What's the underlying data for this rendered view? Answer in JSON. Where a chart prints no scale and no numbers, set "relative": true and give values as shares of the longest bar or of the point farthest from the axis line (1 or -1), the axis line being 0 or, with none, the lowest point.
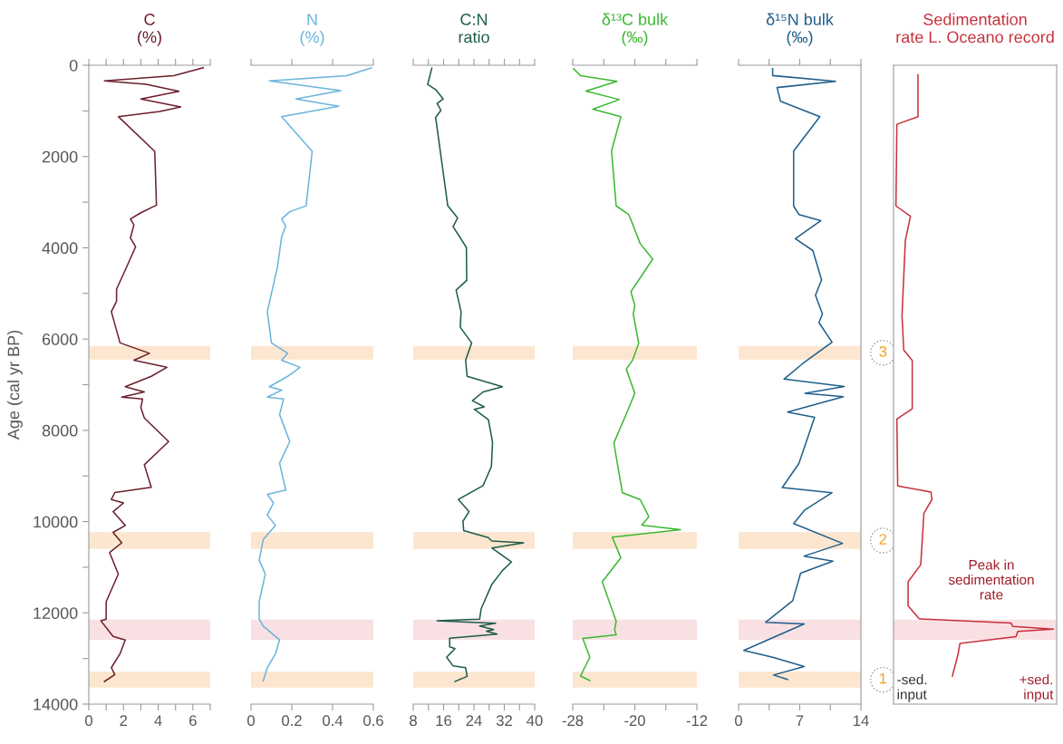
{
  "chart_data": [
    {
      "type": "line",
      "orientation": "horizontal",
      "title": "C\n(%)",
      "ylabel": "Age (cal yr BP)",
      "xlim": [
        0,
        7
      ],
      "xticks": [
        0,
        {
          "value": 1,
          "label": null
        },
        2,
        {
          "value": 3,
          "label": null
        },
        4,
        {
          "value": 5,
          "label": null
        },
        6,
        {
          "value": 7,
          "label": null
        }
      ],
      "ylim": [
        14000,
        0
      ],
      "yticks": [
        0,
        {
          "value": 1000,
          "label": null
        },
        2000,
        {
          "value": 3000,
          "label": null
        },
        4000,
        {
          "value": 5000,
          "label": null
        },
        6000,
        {
          "value": 7000,
          "label": null
        },
        8000,
        {
          "value": 9000,
          "label": null
        },
        10000,
        {
          "value": 11000,
          "label": null
        },
        12000,
        {
          "value": 13000,
          "label": null
        },
        14000
      ],
      "series": [
        {
          "color": "#6b1f2a",
          "x": [
            53,
            228,
            342,
            418,
            570,
            738,
            913,
            1011,
            1125,
            1886,
            3065,
            3232,
            3369,
            3498,
            3787,
            3977,
            4487,
            4905,
            5171,
            5399,
            6084,
            6312,
            6464,
            6620,
            6817,
            7045,
            7159,
            7273,
            7311,
            7501,
            7729,
            8246,
            8755,
            9249,
            9363,
            9515,
            9591,
            9781,
            10085,
            10237,
            10465,
            10678,
            11149,
            11757,
            12137,
            12175,
            12517,
            12593,
            12897,
            13201,
            13353,
            13505
          ],
          "values": [
            6.6,
            4.9,
            0.9,
            3.3,
            5.2,
            3.0,
            5.3,
            4.1,
            1.7,
            3.8,
            3.9,
            3.0,
            2.4,
            2.6,
            2.4,
            2.7,
            2.1,
            1.6,
            1.6,
            1.3,
            1.8,
            3.5,
            2.6,
            4.5,
            3.6,
            2.1,
            3.2,
            1.9,
            3.1,
            3.0,
            3.2,
            4.6,
            3.2,
            3.6,
            1.5,
            1.3,
            2.0,
            1.4,
            2.1,
            1.4,
            1.9,
            1.2,
            1.7,
            1.0,
            1.0,
            0.7,
            1.4,
            2.1,
            1.8,
            1.3,
            1.5,
            0.9
          ]
        }
      ],
      "bands": [
        {
          "axis": "y",
          "from": 6150,
          "to": 6450,
          "label": null,
          "color": "#fde6cf"
        },
        {
          "axis": "y",
          "from": 10230,
          "to": 10600,
          "label": null,
          "color": "#fde6cf"
        },
        {
          "axis": "y",
          "from": 12150,
          "to": 12590,
          "label": null,
          "color": "#f9e0e3"
        },
        {
          "axis": "y",
          "from": 13290,
          "to": 13640,
          "label": null,
          "color": "#fde6cf"
        }
      ]
    },
    {
      "type": "line",
      "orientation": "horizontal",
      "title": "N\n(%)",
      "tick_labels": "x",
      "xlim": [
        0,
        0.6
      ],
      "xticks": [
        0,
        0.2,
        0.4,
        0.6
      ],
      "ylim": [
        14000,
        0
      ],
      "series": [
        {
          "color": "#6ab4dc",
          "x": [
            61,
            228,
            342,
            555,
            738,
            897,
            1125,
            1886,
            3080,
            3209,
            3369,
            3521,
            3764,
            4410,
            5399,
            6084,
            6312,
            6464,
            6620,
            6817,
            7045,
            7121,
            7273,
            7311,
            7653,
            8246,
            8717,
            9310,
            9401,
            9591,
            9857,
            10085,
            10389,
            10845,
            11149,
            11757,
            12137,
            12289,
            12593,
            12897,
            13201,
            13490
          ],
          "values": [
            0.59,
            0.47,
            0.09,
            0.44,
            0.22,
            0.43,
            0.15,
            0.3,
            0.27,
            0.19,
            0.15,
            0.17,
            0.15,
            0.13,
            0.08,
            0.1,
            0.18,
            0.15,
            0.24,
            0.18,
            0.09,
            0.15,
            0.08,
            0.16,
            0.14,
            0.19,
            0.14,
            0.17,
            0.08,
            0.11,
            0.08,
            0.12,
            0.06,
            0.04,
            0.07,
            0.04,
            0.04,
            0.06,
            0.14,
            0.12,
            0.08,
            0.06
          ]
        }
      ],
      "bands": [
        {
          "axis": "y",
          "from": 6150,
          "to": 6450,
          "label": null,
          "color": "#fde6cf"
        },
        {
          "axis": "y",
          "from": 10230,
          "to": 10600,
          "label": null,
          "color": "#fde6cf"
        },
        {
          "axis": "y",
          "from": 12150,
          "to": 12590,
          "label": null,
          "color": "#f9e0e3"
        },
        {
          "axis": "y",
          "from": 13290,
          "to": 13640,
          "label": null,
          "color": "#fde6cf"
        }
      ]
    },
    {
      "type": "line",
      "orientation": "horizontal",
      "title": "C:N\nratio",
      "tick_labels": "x",
      "xlim": [
        8,
        40
      ],
      "xticks": [
        8,
        {
          "value": 12,
          "label": null
        },
        16,
        {
          "value": 20,
          "label": null
        },
        24,
        {
          "value": 28,
          "label": null
        },
        32,
        {
          "value": 36,
          "label": null
        },
        40
      ],
      "ylim": [
        14000,
        0
      ],
      "series": [
        {
          "color": "#1d5c4a",
          "x": [
            61,
            418,
            532,
            738,
            836,
            988,
            1141,
            3080,
            3346,
            3536,
            3992,
            4715,
            4928,
            5399,
            5741,
            6084,
            6464,
            6817,
            7045,
            7159,
            7349,
            7486,
            7539,
            7767,
            8261,
            8793,
            9211,
            9515,
            9781,
            9994,
            10199,
            10351,
            10427,
            10465,
            10579,
            10883,
            11073,
            11377,
            11909,
            12137,
            12175,
            12229,
            12289,
            12365,
            12403,
            12464,
            12555,
            12745,
            12783,
            12973,
            13163,
            13201,
            13391,
            13505
          ],
          "values": [
            12.9,
            11.8,
            13.9,
            15.9,
            14.3,
            15.3,
            13.9,
            17.1,
            19.7,
            18.5,
            22.0,
            22.1,
            19.3,
            20.6,
            20.4,
            23.4,
            21.8,
            22.2,
            31.5,
            26.4,
            23.6,
            26.7,
            24.1,
            27.8,
            28.9,
            28.6,
            26.4,
            19.9,
            22.7,
            21.1,
            21.3,
            27.8,
            28.7,
            37.1,
            28.7,
            33.9,
            31.5,
            28.7,
            25.9,
            25.5,
            14.3,
            29.7,
            25.5,
            29.2,
            27.3,
            30.1,
            17.6,
            17.6,
            19.0,
            16.8,
            18.5,
            21.8,
            22.2,
            19.0
          ]
        }
      ],
      "bands": [
        {
          "axis": "y",
          "from": 6150,
          "to": 6450,
          "label": null,
          "color": "#fde6cf"
        },
        {
          "axis": "y",
          "from": 10230,
          "to": 10600,
          "label": null,
          "color": "#fde6cf"
        },
        {
          "axis": "y",
          "from": 12150,
          "to": 12590,
          "label": null,
          "color": "#f9e0e3"
        },
        {
          "axis": "y",
          "from": 13290,
          "to": 13640,
          "label": null,
          "color": "#fde6cf"
        }
      ]
    },
    {
      "type": "line",
      "orientation": "horizontal",
      "title": "δ¹³C bulk\n(‰)",
      "tick_labels": "x",
      "xlim": [
        -28,
        -12
      ],
      "xticks": [
        -28,
        {
          "value": -24,
          "label": null
        },
        -20,
        {
          "value": -16,
          "label": null
        },
        -12
      ],
      "ylim": [
        14000,
        0
      ],
      "series": [
        {
          "color": "#3cb832",
          "x": [
            75,
            226,
            353,
            564,
            752,
            963,
            1128,
            1880,
            3083,
            3271,
            3384,
            3910,
            4249,
            4963,
            5264,
            5452,
            6091,
            6467,
            6660,
            7189,
            7640,
            8278,
            9367,
            9517,
            9893,
            10080,
            10178,
            10343,
            10794,
            11320,
            12183,
            12371,
            12483,
            12559,
            12972,
            13385,
            13482
          ],
          "values": [
            -27.9,
            -27.0,
            -22.3,
            -26.3,
            -22.0,
            -25.4,
            -21.8,
            -23.0,
            -22.4,
            -20.8,
            -20.5,
            -19.3,
            -17.7,
            -20.5,
            -20.0,
            -20.2,
            -19.5,
            -20.3,
            -21.1,
            -20.0,
            -21.1,
            -22.7,
            -21.6,
            -19.3,
            -18.2,
            -19.1,
            -14.1,
            -22.9,
            -21.8,
            -24.2,
            -22.4,
            -22.6,
            -22.4,
            -26.7,
            -25.8,
            -27.0,
            -25.8
          ]
        }
      ],
      "bands": [
        {
          "axis": "y",
          "from": 6150,
          "to": 6450,
          "label": null,
          "color": "#fde6cf"
        },
        {
          "axis": "y",
          "from": 10230,
          "to": 10600,
          "label": null,
          "color": "#fde6cf"
        },
        {
          "axis": "y",
          "from": 12150,
          "to": 12590,
          "label": null,
          "color": "#f9e0e3"
        },
        {
          "axis": "y",
          "from": 13290,
          "to": 13640,
          "label": null,
          "color": "#fde6cf"
        }
      ]
    },
    {
      "type": "line",
      "orientation": "horizontal",
      "title": "δ¹⁵N bulk\n(‰)",
      "tick_labels": "x",
      "xlim": [
        0,
        14
      ],
      "xticks": [
        0,
        {
          "value": 3.5,
          "label": null
        },
        7,
        {
          "value": 10.5,
          "label": null
        },
        14
      ],
      "ylim": [
        14000,
        0
      ],
      "series": [
        {
          "color": "#1f5f8b",
          "x": [
            75,
            226,
            353,
            489,
            790,
            1128,
            1880,
            3083,
            3271,
            3407,
            3798,
            4061,
            4700,
            5038,
            5452,
            5640,
            6069,
            6543,
            6877,
            7039,
            7189,
            7264,
            7602,
            7715,
            8728,
            9254,
            9367,
            9742,
            10043,
            10478,
            10756,
            10869,
            11132,
            11733,
            12206,
            12243,
            12822,
            12972,
            13174,
            13362,
            13460
          ],
          "values": [
            3.9,
            3.9,
            11.1,
            4.4,
            4.8,
            9.3,
            6.3,
            6.3,
            6.9,
            9.4,
            6.5,
            8.5,
            9.5,
            8.8,
            9.6,
            9.2,
            10.7,
            7.3,
            5.2,
            12.1,
            7.6,
            12.0,
            5.6,
            8.7,
            6.9,
            5.0,
            10.7,
            7.6,
            6.3,
            11.9,
            7.5,
            10.8,
            7.1,
            6.2,
            3.1,
            7.5,
            0.6,
            3.9,
            7.5,
            4.0,
            5.6
          ]
        }
      ],
      "bands": [
        {
          "axis": "y",
          "from": 6150,
          "to": 6450,
          "label": "3",
          "color": "#fde6cf"
        },
        {
          "axis": "y",
          "from": 10230,
          "to": 10600,
          "label": "2",
          "color": "#fde6cf"
        },
        {
          "axis": "y",
          "from": 12150,
          "to": 12590,
          "label": null,
          "color": "#f9e0e3"
        },
        {
          "axis": "y",
          "from": 13290,
          "to": 13640,
          "label": "1",
          "color": "#fde6cf"
        }
      ]
    },
    {
      "type": "line",
      "orientation": "horizontal",
      "relative": true,
      "title": "Sedimentation\nrate L. Oceano record",
      "tick_labels": false,
      "ylim": [
        14000,
        0
      ],
      "annotations": [
        "Peak in\nsedimentation\nrate",
        "-sed.\ninput",
        "+sed.\ninput"
      ],
      "series": [
        {
          "color": "#c8313c",
          "x": [
            211,
            1128,
            1293,
            3083,
            3309,
            3835,
            5490,
            6242,
            6467,
            7527,
            7752,
            9217,
            9352,
            9517,
            9817,
            10944,
            11320,
            11845,
            12130,
            12221,
            12296,
            12356,
            12408,
            12521,
            12671,
            12897,
            13385
          ],
          "values": [
            0.153,
            0.153,
            0.021,
            0.015,
            0.106,
            0.074,
            0.053,
            0.064,
            0.117,
            0.117,
            0.021,
            0.026,
            0.234,
            0.24,
            0.19,
            0.17,
            0.091,
            0.091,
            0.16,
            0.734,
            0.745,
            1.0,
            0.777,
            0.766,
            0.415,
            0.404,
            0.368
          ]
        }
      ],
      "bands": [
        {
          "axis": "y",
          "from": 12150,
          "to": 12590,
          "label": null,
          "color": "#f9e0e3"
        }
      ]
    }
  ]
}
